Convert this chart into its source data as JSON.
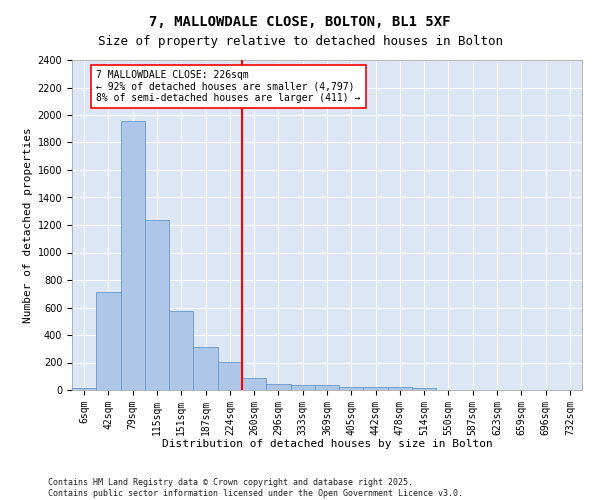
{
  "title": "7, MALLOWDALE CLOSE, BOLTON, BL1 5XF",
  "subtitle": "Size of property relative to detached houses in Bolton",
  "xlabel": "Distribution of detached houses by size in Bolton",
  "ylabel": "Number of detached properties",
  "categories": [
    "6sqm",
    "42sqm",
    "79sqm",
    "115sqm",
    "151sqm",
    "187sqm",
    "224sqm",
    "260sqm",
    "296sqm",
    "333sqm",
    "369sqm",
    "405sqm",
    "442sqm",
    "478sqm",
    "514sqm",
    "550sqm",
    "587sqm",
    "623sqm",
    "659sqm",
    "696sqm",
    "732sqm"
  ],
  "values": [
    15,
    710,
    1960,
    1235,
    575,
    310,
    205,
    90,
    47,
    37,
    37,
    20,
    20,
    20,
    15,
    0,
    0,
    0,
    0,
    0,
    0
  ],
  "bar_color": "#aec6e8",
  "bar_edge_color": "#6699cc",
  "fig_background_color": "#ffffff",
  "plot_background_color": "#dce6f5",
  "grid_color": "#ffffff",
  "vline_color": "red",
  "vline_x": 6,
  "annotation_text": "7 MALLOWDALE CLOSE: 226sqm\n← 92% of detached houses are smaller (4,797)\n8% of semi-detached houses are larger (411) →",
  "ylim": [
    0,
    2400
  ],
  "yticks": [
    0,
    200,
    400,
    600,
    800,
    1000,
    1200,
    1400,
    1600,
    1800,
    2000,
    2200,
    2400
  ],
  "footer": "Contains HM Land Registry data © Crown copyright and database right 2025.\nContains public sector information licensed under the Open Government Licence v3.0.",
  "title_fontsize": 10,
  "subtitle_fontsize": 9,
  "xlabel_fontsize": 8,
  "ylabel_fontsize": 8,
  "tick_fontsize": 7,
  "annot_fontsize": 7,
  "footer_fontsize": 6
}
